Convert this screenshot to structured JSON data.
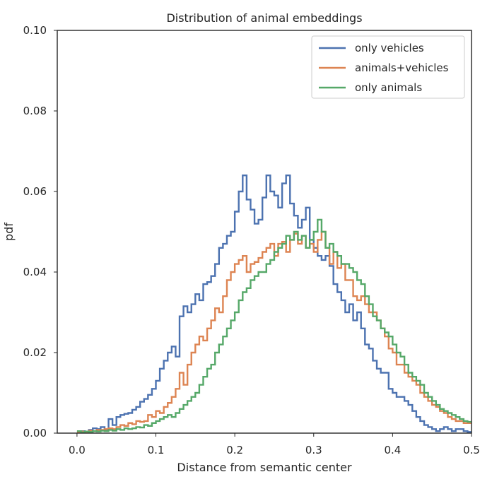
{
  "chart_data": {
    "type": "line",
    "title": "Distribution of animal embeddings",
    "xlabel": "Distance from semantic center",
    "ylabel": "pdf",
    "xlim": [
      -0.025,
      0.5
    ],
    "ylim": [
      0.0,
      0.1
    ],
    "xticks": [
      0.0,
      0.1,
      0.2,
      0.3,
      0.4,
      0.5
    ],
    "xtick_labels": [
      "0.0",
      "0.1",
      "0.2",
      "0.3",
      "0.4",
      "0.5"
    ],
    "yticks": [
      0.0,
      0.02,
      0.04,
      0.06,
      0.08,
      0.1
    ],
    "ytick_labels": [
      "0.00",
      "0.02",
      "0.04",
      "0.06",
      "0.08",
      "0.10"
    ],
    "grid": false,
    "legend_position": "top-right",
    "bin_start": 0.0,
    "bin_width": 0.005,
    "series": [
      {
        "name": "only vehicles",
        "color": "#4c72b0",
        "values": [
          0.0002,
          0.0005,
          0.0003,
          0.0008,
          0.0012,
          0.001,
          0.0015,
          0.0008,
          0.0035,
          0.002,
          0.004,
          0.0045,
          0.0048,
          0.005,
          0.0058,
          0.0065,
          0.0078,
          0.0085,
          0.0095,
          0.011,
          0.013,
          0.016,
          0.018,
          0.02,
          0.0215,
          0.019,
          0.029,
          0.0315,
          0.03,
          0.032,
          0.0345,
          0.033,
          0.037,
          0.0375,
          0.039,
          0.042,
          0.046,
          0.047,
          0.049,
          0.05,
          0.055,
          0.06,
          0.064,
          0.058,
          0.0555,
          0.052,
          0.053,
          0.0585,
          0.064,
          0.06,
          0.059,
          0.056,
          0.062,
          0.064,
          0.057,
          0.054,
          0.051,
          0.053,
          0.056,
          0.048,
          0.046,
          0.044,
          0.043,
          0.044,
          0.0415,
          0.037,
          0.035,
          0.033,
          0.03,
          0.032,
          0.028,
          0.03,
          0.026,
          0.022,
          0.021,
          0.018,
          0.016,
          0.015,
          0.015,
          0.011,
          0.01,
          0.009,
          0.009,
          0.008,
          0.007,
          0.0055,
          0.004,
          0.003,
          0.002,
          0.0015,
          0.001,
          0.0005,
          0.001,
          0.0015,
          0.001,
          0.0005,
          0.001,
          0.001,
          0.0005,
          0.0003
        ]
      },
      {
        "name": "animals+vehicles",
        "color": "#dd8452",
        "values": [
          0.0002,
          0.0004,
          0.0003,
          0.0006,
          0.0005,
          0.0008,
          0.0008,
          0.001,
          0.0012,
          0.001,
          0.0015,
          0.002,
          0.0018,
          0.0025,
          0.0022,
          0.003,
          0.0028,
          0.003,
          0.0045,
          0.004,
          0.0055,
          0.005,
          0.0065,
          0.0075,
          0.009,
          0.011,
          0.015,
          0.012,
          0.017,
          0.02,
          0.022,
          0.024,
          0.023,
          0.026,
          0.028,
          0.031,
          0.03,
          0.034,
          0.038,
          0.04,
          0.042,
          0.043,
          0.044,
          0.04,
          0.042,
          0.0425,
          0.0435,
          0.045,
          0.046,
          0.047,
          0.044,
          0.047,
          0.0475,
          0.045,
          0.048,
          0.0495,
          0.047,
          0.049,
          0.046,
          0.047,
          0.045,
          0.048,
          0.05,
          0.046,
          0.042,
          0.045,
          0.041,
          0.042,
          0.038,
          0.038,
          0.034,
          0.033,
          0.034,
          0.032,
          0.03,
          0.03,
          0.028,
          0.026,
          0.024,
          0.021,
          0.02,
          0.017,
          0.017,
          0.015,
          0.014,
          0.013,
          0.012,
          0.01,
          0.009,
          0.008,
          0.007,
          0.0065,
          0.0055,
          0.005,
          0.004,
          0.0035,
          0.003,
          0.003,
          0.0025,
          0.0025
        ]
      },
      {
        "name": "only animals",
        "color": "#55a868",
        "values": [
          0.0005,
          0.0002,
          0.0004,
          0.0003,
          0.0005,
          0.0004,
          0.0006,
          0.0005,
          0.0008,
          0.0006,
          0.001,
          0.0008,
          0.0012,
          0.001,
          0.0012,
          0.0015,
          0.0014,
          0.002,
          0.0018,
          0.0025,
          0.003,
          0.0035,
          0.004,
          0.0045,
          0.004,
          0.005,
          0.006,
          0.007,
          0.008,
          0.009,
          0.01,
          0.012,
          0.014,
          0.016,
          0.017,
          0.02,
          0.022,
          0.024,
          0.026,
          0.028,
          0.03,
          0.033,
          0.035,
          0.036,
          0.038,
          0.039,
          0.04,
          0.04,
          0.042,
          0.043,
          0.045,
          0.046,
          0.047,
          0.049,
          0.048,
          0.05,
          0.048,
          0.049,
          0.046,
          0.048,
          0.05,
          0.053,
          0.05,
          0.046,
          0.047,
          0.045,
          0.044,
          0.042,
          0.042,
          0.041,
          0.04,
          0.038,
          0.037,
          0.034,
          0.032,
          0.029,
          0.028,
          0.026,
          0.025,
          0.024,
          0.022,
          0.02,
          0.019,
          0.017,
          0.015,
          0.014,
          0.013,
          0.012,
          0.01,
          0.009,
          0.008,
          0.007,
          0.006,
          0.0055,
          0.005,
          0.0045,
          0.004,
          0.0035,
          0.003,
          0.0028
        ]
      }
    ]
  }
}
